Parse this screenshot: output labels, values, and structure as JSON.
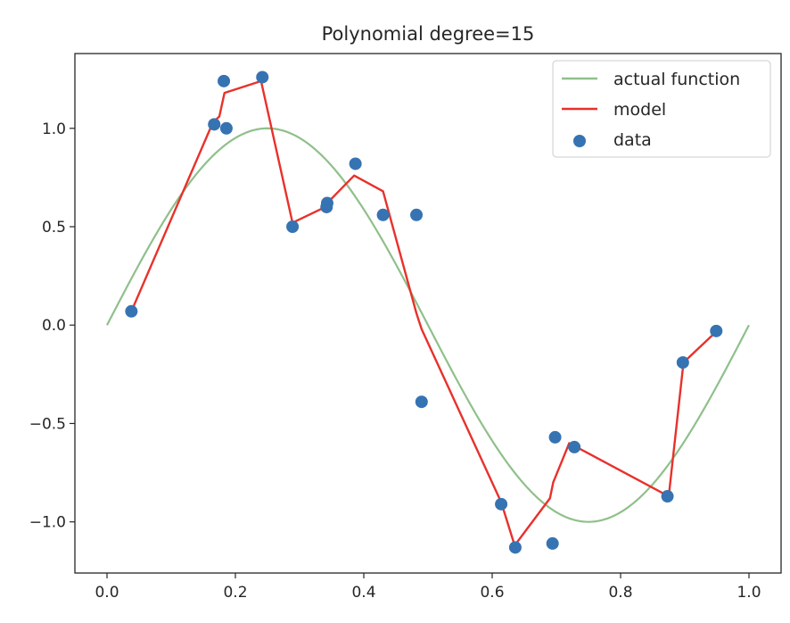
{
  "chart_data": {
    "type": "scatter",
    "title": "Polynomial degree=15",
    "xlabel": "",
    "ylabel": "",
    "xlim": [
      -0.05,
      1.05
    ],
    "ylim": [
      -1.26,
      1.38
    ],
    "xticks": [
      0.0,
      0.2,
      0.4,
      0.6,
      0.8,
      1.0
    ],
    "xtick_labels": [
      "0.0",
      "0.2",
      "0.4",
      "0.6",
      "0.8",
      "1.0"
    ],
    "yticks": [
      -1.0,
      -0.5,
      0.0,
      0.5,
      1.0
    ],
    "ytick_labels": [
      "−1.0",
      "−0.5",
      "0.0",
      "0.5",
      "1.0"
    ],
    "grid": false,
    "legend_position": "top-right",
    "series": [
      {
        "name": "actual function",
        "kind": "line",
        "color": "#8fc08a",
        "function": "sin(2*pi*x)",
        "x_range": [
          0.0,
          1.0
        ]
      },
      {
        "name": "model",
        "kind": "line",
        "color": "#e8312b",
        "x": [
          0.038,
          0.165,
          0.175,
          0.183,
          0.24,
          0.289,
          0.34,
          0.343,
          0.385,
          0.43,
          0.482,
          0.49,
          0.614,
          0.635,
          0.69,
          0.695,
          0.72,
          0.875,
          0.898,
          0.95
        ],
        "y": [
          0.07,
          1.03,
          1.06,
          1.18,
          1.24,
          0.52,
          0.6,
          0.62,
          0.76,
          0.68,
          0.06,
          -0.02,
          -0.9,
          -1.12,
          -0.88,
          -0.8,
          -0.6,
          -0.87,
          -0.19,
          -0.03
        ]
      },
      {
        "name": "data",
        "kind": "scatter",
        "color": "#3673b2",
        "x": [
          0.038,
          0.167,
          0.182,
          0.186,
          0.242,
          0.289,
          0.342,
          0.343,
          0.387,
          0.43,
          0.482,
          0.49,
          0.614,
          0.636,
          0.694,
          0.698,
          0.728,
          0.873,
          0.897,
          0.949
        ],
        "y": [
          0.07,
          1.02,
          1.24,
          1.0,
          1.26,
          0.5,
          0.6,
          0.62,
          0.82,
          0.56,
          0.56,
          -0.39,
          -0.91,
          -1.13,
          -1.11,
          -0.57,
          -0.62,
          -0.87,
          -0.19,
          -0.03
        ]
      }
    ]
  }
}
